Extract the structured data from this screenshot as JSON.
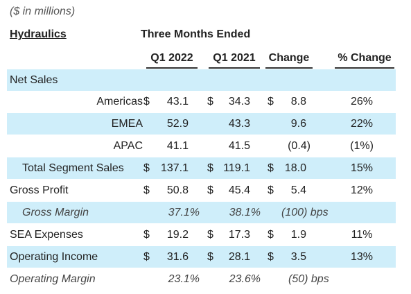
{
  "caption": "($ in millions)",
  "header": {
    "segment": "Hydraulics",
    "period": "Three Months Ended",
    "columns": {
      "q1_2022": "Q1 2022",
      "q1_2021": "Q1 2021",
      "change": "Change",
      "pct_change": "% Change"
    }
  },
  "rows": {
    "net_sales": {
      "label": "Net Sales"
    },
    "americas": {
      "label": "Americas",
      "cur1": "$",
      "q1_2022": "43.1",
      "cur2": "$",
      "q1_2021": "34.3",
      "cur3": "$",
      "change": "8.8",
      "pct": "26%"
    },
    "emea": {
      "label": "EMEA",
      "q1_2022": "52.9",
      "q1_2021": "43.3",
      "change": "9.6",
      "pct": "22%"
    },
    "apac": {
      "label": "APAC",
      "q1_2022": "41.1",
      "q1_2021": "41.5",
      "change": "(0.4)",
      "pct": "(1%)"
    },
    "total_segment_sales": {
      "label": "Total Segment Sales",
      "cur1": "$",
      "q1_2022": "137.1",
      "cur2": "$",
      "q1_2021": "119.1",
      "cur3": "$",
      "change": "18.0",
      "pct": "15%"
    },
    "gross_profit": {
      "label": "Gross Profit",
      "cur1": "$",
      "q1_2022": "50.8",
      "cur2": "$",
      "q1_2021": "45.4",
      "cur3": "$",
      "change": "5.4",
      "pct": "12%"
    },
    "gross_margin": {
      "label": "Gross Margin",
      "q1_2022": "37.1%",
      "q1_2021": "38.1%",
      "change": "(100) bps"
    },
    "sea_expenses": {
      "label": "SEA Expenses",
      "cur1": "$",
      "q1_2022": "19.2",
      "cur2": "$",
      "q1_2021": "17.3",
      "cur3": "$",
      "change": "1.9",
      "pct": "11%"
    },
    "operating_income": {
      "label": "Operating Income",
      "cur1": "$",
      "q1_2022": "31.6",
      "cur2": "$",
      "q1_2021": "28.1",
      "cur3": "$",
      "change": "3.5",
      "pct": "13%"
    },
    "operating_margin": {
      "label": "Operating Margin",
      "q1_2022": "23.1%",
      "q1_2021": "23.6%",
      "change": "(50) bps"
    }
  },
  "colors": {
    "row_shade": "#cfeefa",
    "text": "#222222"
  }
}
